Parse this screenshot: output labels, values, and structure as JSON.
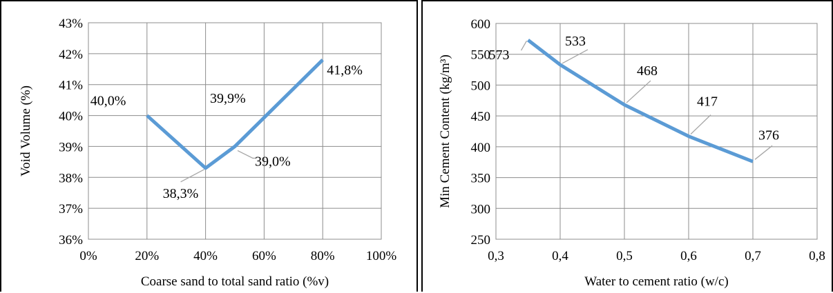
{
  "chart_data": [
    {
      "type": "line",
      "title": "",
      "xlabel": "Coarse sand to total sand ratio (%v)",
      "ylabel": "Void Volume (%)",
      "xlim": [
        0,
        100
      ],
      "ylim": [
        36,
        43
      ],
      "x_ticks": [
        "0%",
        "20%",
        "40%",
        "60%",
        "80%",
        "100%"
      ],
      "y_ticks": [
        "36%",
        "37%",
        "38%",
        "39%",
        "40%",
        "41%",
        "42%",
        "43%"
      ],
      "grid": true,
      "series": [
        {
          "x": [
            20,
            40,
            50,
            80
          ],
          "y": [
            40.0,
            38.3,
            39.0,
            41.8
          ],
          "labels": [
            "40,0%",
            "38,3%",
            "39,0%",
            "41,8%"
          ],
          "color": "#5b9bd5"
        }
      ],
      "extra_labels": [
        "39,9%"
      ]
    },
    {
      "type": "line",
      "title": "",
      "xlabel": "Water to cement ratio (w/c)",
      "ylabel": "Min Cement Content (kg/m³)",
      "xlim": [
        0.3,
        0.8
      ],
      "ylim": [
        250,
        600
      ],
      "x_ticks": [
        "0,3",
        "0,4",
        "0,5",
        "0,6",
        "0,7",
        "0,8"
      ],
      "y_ticks": [
        "250",
        "300",
        "350",
        "400",
        "450",
        "500",
        "550",
        "600"
      ],
      "grid": true,
      "series": [
        {
          "x": [
            0.35,
            0.4,
            0.5,
            0.6,
            0.7
          ],
          "y": [
            573,
            533,
            468,
            417,
            376
          ],
          "labels": [
            "573",
            "533",
            "468",
            "417",
            "376"
          ],
          "color": "#5b9bd5"
        }
      ]
    }
  ]
}
